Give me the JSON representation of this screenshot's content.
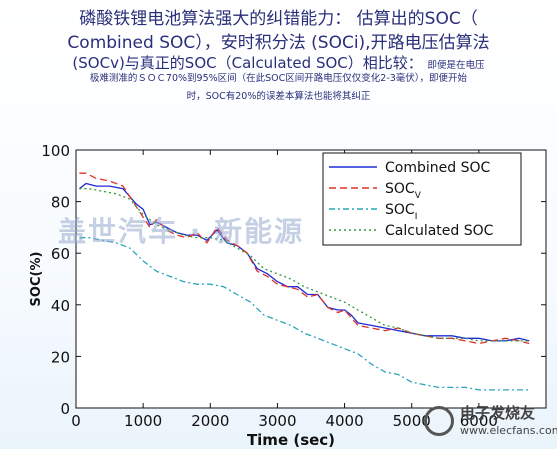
{
  "heading": {
    "line1": "磷酸铁锂电池算法强大的纠错能力：  估算出的SOC（",
    "line2": "Combined SOC），安时积分法 (SOCi),开路电压估算法",
    "line3": "(SOCv)与真正的SOC（Calculated SOC）相比较：",
    "line3_note": "即便是在电压",
    "line4": "极难测准的ＳＯＣ70%到95%区间（在此SOC区间开路电压仅仅变化2-3毫伏），即便开始",
    "line5": "时，SOC有20%的误差本算法也能将其纠正"
  },
  "watermark": "盖世汽车 · 新能源",
  "logo": {
    "name": "电子发烧友",
    "url": "www.elecfans.com"
  },
  "colors": {
    "combined": "#1f2bd6",
    "socv": "#e0302a",
    "soci": "#2aa6b8",
    "calculated": "#2f9a3a",
    "heading": "#2a2f7a"
  },
  "chart_data": {
    "type": "line",
    "xlabel": "Time (sec)",
    "ylabel": "SOC(%)",
    "xlim": [
      0,
      7000
    ],
    "ylim": [
      0,
      100
    ],
    "xticks": [
      0,
      1000,
      2000,
      3000,
      4000,
      5000,
      6000
    ],
    "yticks": [
      0,
      20,
      40,
      60,
      80,
      100
    ],
    "legend_position": "top-right",
    "series": [
      {
        "name": "Combined SOC",
        "style": "solid",
        "x": [
          50,
          150,
          300,
          500,
          700,
          900,
          1000,
          1100,
          1200,
          1350,
          1500,
          1650,
          1800,
          1950,
          2100,
          2250,
          2400,
          2550,
          2700,
          2850,
          3000,
          3150,
          3300,
          3450,
          3600,
          3750,
          3900,
          4000,
          4100,
          4200,
          4400,
          4600,
          4800,
          5000,
          5200,
          5400,
          5600,
          5800,
          6000,
          6200,
          6400,
          6600,
          6750
        ],
        "y": [
          85,
          87,
          86,
          86,
          85,
          79,
          77,
          71,
          72,
          70,
          68,
          67,
          67,
          65,
          69,
          64,
          63,
          60,
          54,
          52,
          49,
          47,
          47,
          44,
          44,
          39,
          38,
          38,
          36,
          33,
          32,
          31,
          30,
          29,
          28,
          28,
          28,
          27,
          27,
          26,
          26,
          27,
          26
        ]
      },
      {
        "name": "SOC_V",
        "style": "dashed",
        "x": [
          50,
          150,
          300,
          500,
          700,
          900,
          1000,
          1100,
          1200,
          1350,
          1500,
          1650,
          1800,
          1950,
          2100,
          2250,
          2400,
          2550,
          2700,
          2850,
          3000,
          3150,
          3300,
          3450,
          3600,
          3750,
          3900,
          4000,
          4100,
          4200,
          4400,
          4600,
          4800,
          5000,
          5200,
          5400,
          5600,
          5800,
          6000,
          6200,
          6400,
          6600,
          6750
        ],
        "y": [
          91,
          91,
          89,
          88,
          86,
          78,
          74,
          70,
          73,
          69,
          67,
          66,
          68,
          64,
          70,
          65,
          63,
          60,
          53,
          51,
          48,
          47,
          46,
          43,
          44,
          39,
          37,
          38,
          35,
          32,
          31,
          30,
          31,
          29,
          28,
          27,
          27,
          26,
          25,
          26,
          27,
          26,
          25
        ]
      },
      {
        "name": "SOC_I",
        "style": "dashdot",
        "x": [
          50,
          200,
          400,
          600,
          800,
          1000,
          1200,
          1400,
          1600,
          1800,
          2000,
          2200,
          2400,
          2600,
          2800,
          3000,
          3200,
          3400,
          3600,
          3800,
          4000,
          4200,
          4400,
          4600,
          4800,
          5000,
          5200,
          5400,
          5600,
          5800,
          6000,
          6200,
          6400,
          6600,
          6750
        ],
        "y": [
          66,
          66,
          65,
          64,
          62,
          57,
          53,
          51,
          49,
          48,
          48,
          47,
          44,
          41,
          36,
          34,
          32,
          29,
          27,
          25,
          23,
          21,
          17,
          14,
          13,
          10,
          9,
          8,
          8,
          8,
          7,
          7,
          7,
          7,
          7
        ]
      },
      {
        "name": "Calculated SOC",
        "style": "dotted",
        "x": [
          50,
          200,
          400,
          600,
          800,
          1000,
          1200,
          1400,
          1600,
          1800,
          2000,
          2200,
          2400,
          2600,
          2800,
          3000,
          3200,
          3400,
          3600,
          3800,
          4000,
          4200,
          4400,
          4600,
          4800,
          5000,
          5200,
          5400,
          5600,
          5800,
          6000,
          6200,
          6400,
          6600,
          6750
        ],
        "y": [
          85,
          85,
          84,
          83,
          81,
          75,
          71,
          69,
          67,
          66,
          66,
          65,
          62,
          59,
          54,
          52,
          50,
          47,
          45,
          43,
          41,
          38,
          35,
          32,
          31,
          29,
          28,
          27,
          27,
          27,
          26,
          26,
          26,
          26,
          26
        ]
      }
    ]
  }
}
